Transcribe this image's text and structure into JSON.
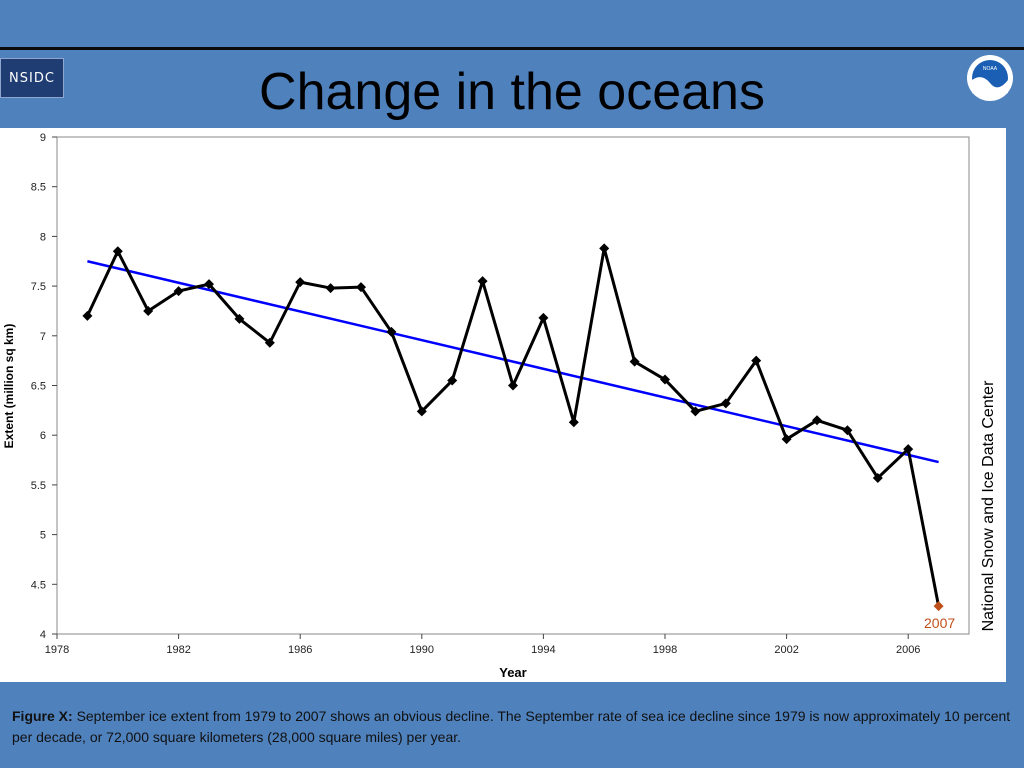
{
  "slide": {
    "title": "Change in the oceans",
    "logo_left_text": "NSIDC",
    "logo_right_text": "NOAA",
    "caption_lead": "Figure X:",
    "caption_body": "September ice extent from 1979 to 2007 shows an obvious decline. The September rate of sea ice decline since 1979 is now approximately 10 percent per decade, or 72,000 square kilometers (28,000 square miles) per year.",
    "colors": {
      "background": "#4f81bd",
      "series": "#000000",
      "trend": "#0000ff",
      "highlight": "#c0501a"
    }
  },
  "chart_data": {
    "type": "line",
    "title": "",
    "xlabel": "Year",
    "ylabel": "Extent (million sq km)",
    "side_label": "National Snow and Ice Data Center",
    "xlim": [
      1978,
      2008
    ],
    "ylim": [
      4,
      9
    ],
    "xticks": [
      1978,
      1982,
      1986,
      1990,
      1994,
      1998,
      2002,
      2006
    ],
    "yticks": [
      4,
      4.5,
      5,
      5.5,
      6,
      6.5,
      7,
      7.5,
      8,
      8.5,
      9
    ],
    "grid": false,
    "series": [
      {
        "x": [
          1979,
          1980,
          1981,
          1982,
          1983,
          1984,
          1985,
          1986,
          1987,
          1988,
          1989,
          1990,
          1991,
          1992,
          1993,
          1994,
          1995,
          1996,
          1997,
          1998,
          1999,
          2000,
          2001,
          2002,
          2003,
          2004,
          2005,
          2006,
          2007
        ],
        "values": [
          7.2,
          7.85,
          7.25,
          7.45,
          7.52,
          7.17,
          6.93,
          7.54,
          7.48,
          7.49,
          7.04,
          6.24,
          6.55,
          7.55,
          6.5,
          7.18,
          6.13,
          7.88,
          6.74,
          6.56,
          6.24,
          6.32,
          6.75,
          5.96,
          6.15,
          6.05,
          5.57,
          5.86,
          4.28
        ]
      },
      {
        "x": [
          1979,
          2007
        ],
        "values": [
          7.75,
          5.73
        ]
      }
    ],
    "annotations": [
      {
        "x": 2007,
        "y": 4.28,
        "text": "2007"
      }
    ]
  }
}
